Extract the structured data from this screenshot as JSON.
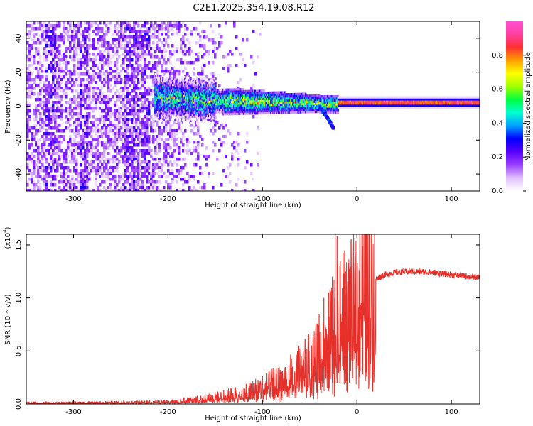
{
  "title": "C2E1.2025.354.19.08.R12",
  "chart_data": [
    {
      "type": "heatmap",
      "name": "spectrogram",
      "xlabel": "Height of straight line (km)",
      "ylabel": "Frequency (Hz)",
      "xlim": [
        -350,
        130
      ],
      "ylim": [
        -50,
        50
      ],
      "xticks": [
        -300,
        -200,
        -100,
        0,
        100
      ],
      "yticks": [
        -40,
        -20,
        0,
        20,
        40
      ],
      "colorbar": {
        "label": "Normalized spectral amplitude",
        "range": [
          0,
          1
        ],
        "ticks": [
          "0.0",
          "0.2",
          "0.4",
          "0.6",
          "0.8"
        ],
        "colors": [
          "#ffffff",
          "#e0c0ff",
          "#9a40ff",
          "#5a00ff",
          "#0000ff",
          "#00a0ff",
          "#00ffd0",
          "#00ff40",
          "#a0ff00",
          "#ffff00",
          "#ffa000",
          "#ff3030",
          "#ff40a0",
          "#ff50d0"
        ]
      },
      "features": {
        "noise_region": [
          -350,
          -150
        ],
        "signal_band_start_km": -215,
        "signal_band_end_km": 130,
        "signal_band_center_hz": 2,
        "signal_tail": [
          [
            -40,
            0
          ],
          [
            -30,
            -8
          ],
          [
            -25,
            -13
          ]
        ],
        "stable_tone_start_km": -20
      }
    },
    {
      "type": "line",
      "name": "snr",
      "xlabel": "Height of straight line (km)",
      "ylabel": "SNR (10 * v/v)",
      "y_multiplier": "(x10",
      "y_multiplier_exp": "4",
      "xlim": [
        -350,
        130
      ],
      "ylim": [
        0,
        1.6
      ],
      "xticks": [
        -300,
        -200,
        -100,
        0,
        100
      ],
      "yticks": [
        "0.0",
        "0.5",
        "1.0",
        "1.5"
      ],
      "color": "#e8302a",
      "curve": [
        [
          -350,
          0.01
        ],
        [
          -250,
          0.015
        ],
        [
          -200,
          0.02
        ],
        [
          -170,
          0.04
        ],
        [
          -150,
          0.06
        ],
        [
          -120,
          0.1
        ],
        [
          -100,
          0.15
        ],
        [
          -80,
          0.2
        ],
        [
          -60,
          0.3
        ],
        [
          -40,
          0.42
        ],
        [
          -30,
          0.55
        ],
        [
          -25,
          0.65
        ],
        [
          -20,
          0.7
        ],
        [
          -15,
          0.75
        ],
        [
          -10,
          0.8
        ],
        [
          -5,
          0.85
        ],
        [
          0,
          0.9
        ],
        [
          5,
          0.97
        ],
        [
          10,
          1.05
        ],
        [
          15,
          1.12
        ],
        [
          20,
          1.17
        ],
        [
          25,
          1.2
        ],
        [
          30,
          1.22
        ],
        [
          40,
          1.24
        ],
        [
          60,
          1.25
        ],
        [
          80,
          1.24
        ],
        [
          100,
          1.22
        ],
        [
          120,
          1.2
        ],
        [
          130,
          1.19
        ]
      ],
      "spikes": [
        [
          -23,
          1.6
        ],
        [
          -21,
          1.58
        ],
        [
          -26,
          1.2
        ],
        [
          -18,
          1.3
        ],
        [
          -12,
          1.25
        ],
        [
          -8,
          1.2
        ],
        [
          -30,
          1.05
        ],
        [
          -40,
          0.85
        ],
        [
          -35,
          1.0
        ]
      ]
    }
  ]
}
